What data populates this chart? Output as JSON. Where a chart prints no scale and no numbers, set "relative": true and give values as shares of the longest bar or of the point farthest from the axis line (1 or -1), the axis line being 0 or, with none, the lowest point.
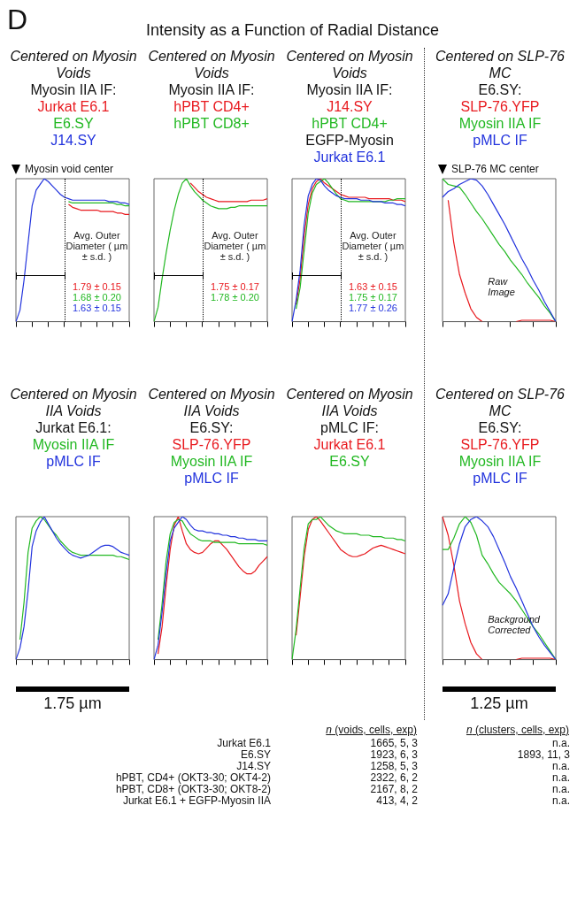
{
  "chart_data": [
    {
      "type": "other",
      "title": "Intensity as a Function of Radial Distance",
      "annotations": [
        "D"
      ]
    },
    {
      "type": "line",
      "relative": true,
      "title": "Centered on Myosin Voids",
      "subtitle": "Myosin IIA IF:",
      "categories": [
        null,
        null,
        null,
        null,
        null,
        null,
        null,
        null,
        null,
        null,
        null,
        null,
        null,
        null,
        null,
        null,
        null,
        null,
        null,
        null,
        null,
        null,
        null,
        null,
        null,
        null,
        null,
        null,
        null
      ],
      "series": [
        {
          "name": "Jurkat E6.1",
          "color": "#e8191e",
          "values": [
            null,
            null,
            null,
            null,
            null,
            null,
            null,
            null,
            null,
            null,
            null,
            null,
            null,
            0.82,
            0.8,
            0.79,
            0.78,
            0.78,
            0.78,
            0.78,
            0.78,
            0.77,
            0.77,
            0.77,
            0.77,
            0.76,
            0.76,
            0.75,
            0.75
          ]
        },
        {
          "name": "E6.SY",
          "color": "#22b822",
          "values": [
            null,
            null,
            null,
            null,
            null,
            null,
            null,
            null,
            null,
            null,
            null,
            null,
            null,
            0.84,
            0.83,
            0.83,
            0.83,
            0.83,
            0.83,
            0.83,
            0.83,
            0.83,
            0.83,
            0.83,
            0.83,
            0.82,
            0.82,
            0.81,
            0.81
          ]
        },
        {
          "name": "J14.SY",
          "color": "#2233dd",
          "values": [
            0,
            0.08,
            0.29,
            0.55,
            0.81,
            0.92,
            0.96,
            1.0,
            0.98,
            0.95,
            0.92,
            0.89,
            0.87,
            0.86,
            0.85,
            0.85,
            0.85,
            0.85,
            0.85,
            0.85,
            0.85,
            0.85,
            0.85,
            0.84,
            0.84,
            0.84,
            0.83,
            0.83,
            0.82
          ]
        }
      ],
      "annotations": [
        {
          "text": "Myosin void center"
        },
        "Avg. Outer Diameter ( µm ± s.d. )",
        "1.79 ± 0.15",
        "1.68 ± 0.20",
        "1.63 ± 0.15"
      ]
    },
    {
      "type": "line",
      "relative": true,
      "title": "Centered on Myosin Voids",
      "subtitle": "Myosin IIA IF:",
      "categories": [
        null,
        null,
        null,
        null,
        null,
        null,
        null,
        null,
        null,
        null,
        null,
        null,
        null,
        null,
        null,
        null,
        null,
        null,
        null,
        null,
        null,
        null,
        null,
        null,
        null,
        null,
        null,
        null,
        null
      ],
      "series": [
        {
          "name": "hPBT CD4+",
          "color": "#e8191e",
          "values": [
            null,
            null,
            null,
            null,
            null,
            null,
            null,
            null,
            null,
            0.97,
            0.94,
            0.91,
            0.89,
            0.87,
            0.86,
            0.85,
            0.84,
            0.84,
            0.84,
            0.84,
            0.84,
            0.84,
            0.84,
            0.84,
            0.85,
            0.85,
            0.85,
            0.85,
            0.86
          ]
        },
        {
          "name": "hPBT CD8+",
          "color": "#22b822",
          "values": [
            0,
            0.1,
            0.3,
            0.48,
            0.64,
            0.78,
            0.89,
            0.97,
            1.0,
            0.95,
            0.91,
            0.88,
            0.85,
            0.83,
            0.81,
            0.8,
            0.79,
            0.79,
            0.79,
            0.8,
            0.8,
            0.81,
            0.81,
            0.81,
            0.81,
            0.81,
            0.81,
            0.81,
            0.81
          ]
        }
      ],
      "annotations": [
        "Avg. Outer Diameter ( µm ± s.d. )",
        "1.75 ± 0.17",
        "1.78 ± 0.20"
      ]
    },
    {
      "type": "line",
      "relative": true,
      "title": "Centered on Myosin Voids",
      "subtitle": "Myosin IIA IF:",
      "legend_title": "EGFP-Myosin",
      "categories": [
        null,
        null,
        null,
        null,
        null,
        null,
        null,
        null,
        null,
        null,
        null,
        null,
        null,
        null,
        null,
        null,
        null,
        null,
        null,
        null,
        null,
        null,
        null,
        null,
        null,
        null,
        null,
        null,
        null
      ],
      "series": [
        {
          "name": "J14.SY",
          "color": "#e8191e",
          "values": [
            null,
            0.12,
            0.3,
            0.6,
            0.82,
            0.93,
            0.98,
            1.0,
            0.97,
            0.95,
            0.93,
            0.91,
            0.89,
            0.88,
            0.87,
            0.87,
            0.87,
            0.87,
            0.87,
            0.86,
            0.86,
            0.86,
            0.86,
            0.86,
            0.86,
            0.85,
            0.85,
            0.85,
            0.84
          ]
        },
        {
          "name": "hPBT CD4+",
          "color": "#22b822",
          "values": [
            null,
            0.09,
            0.24,
            0.5,
            0.76,
            0.9,
            0.96,
            0.98,
            1.0,
            0.97,
            0.93,
            0.89,
            0.86,
            0.85,
            0.84,
            0.84,
            0.84,
            0.84,
            0.84,
            0.84,
            0.84,
            0.84,
            0.84,
            0.84,
            0.85,
            0.85,
            0.86,
            0.86,
            0.86
          ]
        },
        {
          "name": "Jurkat E6.1",
          "color": "#2233dd",
          "values": [
            0,
            0.15,
            0.36,
            0.68,
            0.88,
            0.96,
            1.0,
            0.99,
            0.95,
            0.92,
            0.9,
            0.88,
            0.87,
            0.86,
            0.86,
            0.86,
            0.86,
            0.85,
            0.85,
            0.85,
            0.84,
            0.84,
            0.84,
            0.83,
            0.83,
            0.83,
            0.82,
            0.82,
            0.81
          ]
        }
      ],
      "annotations": [
        "Avg. Outer Diameter ( µm ± s.d. )",
        "1.63 ± 0.15",
        "1.75 ± 0.17",
        "1.77 ± 0.26"
      ]
    },
    {
      "type": "line",
      "relative": true,
      "title": "Centered on SLP-76 MC",
      "subtitle": "E6.SY:",
      "categories": [
        null,
        null,
        null,
        null,
        null,
        null,
        null,
        null,
        null,
        null,
        null,
        null,
        null,
        null,
        null,
        null,
        null,
        null,
        null,
        null,
        null
      ],
      "series": [
        {
          "name": "SLP-76.YFP",
          "color": "#e8191e",
          "values": [
            null,
            0.85,
            0.55,
            0.33,
            0.2,
            0.09,
            0.03,
            0,
            null,
            null,
            null,
            null,
            null,
            0,
            0.01,
            0.01,
            0.01,
            0.01,
            0.01,
            0.01,
            0
          ]
        },
        {
          "name": "Myosin IIA IF",
          "color": "#22b822",
          "values": [
            1,
            0.96,
            0.95,
            0.94,
            0.89,
            0.83,
            0.77,
            0.72,
            0.66,
            0.6,
            0.54,
            0.49,
            0.43,
            0.38,
            0.33,
            0.27,
            0.22,
            0.17,
            0.11,
            0.06,
            0
          ]
        },
        {
          "name": "pMLC IF",
          "color": "#2233dd",
          "values": [
            0.87,
            0.91,
            0.93,
            0.96,
            0.98,
            1.0,
            0.99,
            0.95,
            0.89,
            0.82,
            0.75,
            0.68,
            0.6,
            0.52,
            0.44,
            0.37,
            0.29,
            0.22,
            0.14,
            0.07,
            0
          ]
        }
      ],
      "annotations": [
        {
          "text": "SLP-76 MC center"
        },
        "Raw Image"
      ]
    },
    {
      "type": "line",
      "relative": true,
      "title": "Centered on Myosin IIA Voids",
      "subtitle": "Jurkat E6.1:",
      "xlabel": "1.75 µm",
      "categories": [
        null,
        null,
        null,
        null,
        null,
        null,
        null,
        null,
        null,
        null,
        null,
        null,
        null,
        null,
        null,
        null,
        null,
        null,
        null,
        null,
        null,
        null,
        null,
        null,
        null,
        null,
        null,
        null,
        null
      ],
      "series": [
        {
          "name": "Myosin IIA IF",
          "color": "#22b822",
          "values": [
            null,
            0.14,
            0.4,
            0.75,
            0.92,
            0.97,
            1.0,
            0.98,
            0.94,
            0.9,
            0.87,
            0.83,
            0.8,
            0.77,
            0.75,
            0.74,
            0.73,
            0.73,
            0.73,
            0.73,
            0.73,
            0.73,
            0.73,
            0.73,
            0.73,
            0.72,
            0.72,
            0.71,
            0.7
          ]
        },
        {
          "name": "pMLC IF",
          "color": "#2233dd",
          "values": [
            0,
            0.08,
            0.23,
            0.48,
            0.79,
            0.9,
            0.96,
            1.0,
            0.95,
            0.9,
            0.85,
            0.81,
            0.78,
            0.75,
            0.73,
            0.72,
            0.71,
            0.72,
            0.73,
            0.75,
            0.77,
            0.79,
            0.8,
            0.8,
            0.79,
            0.77,
            0.75,
            0.74,
            0.73
          ]
        }
      ]
    },
    {
      "type": "line",
      "relative": true,
      "title": "Centered on Myosin IIA Voids",
      "subtitle": "E6.SY:",
      "categories": [
        null,
        null,
        null,
        null,
        null,
        null,
        null,
        null,
        null,
        null,
        null,
        null,
        null,
        null,
        null,
        null,
        null,
        null,
        null,
        null,
        null,
        null,
        null,
        null,
        null,
        null,
        null,
        null,
        null
      ],
      "series": [
        {
          "name": "SLP-76.YFP",
          "color": "#e8191e",
          "values": [
            null,
            0.04,
            0.23,
            0.52,
            0.77,
            0.94,
            1.0,
            0.9,
            0.81,
            0.77,
            0.75,
            0.74,
            0.75,
            0.78,
            0.81,
            0.83,
            0.83,
            0.8,
            0.77,
            0.73,
            0.69,
            0.65,
            0.62,
            0.6,
            0.6,
            0.62,
            0.66,
            0.69,
            0.72
          ]
        },
        {
          "name": "Myosin IIA IF",
          "color": "#22b822",
          "values": [
            null,
            0.14,
            0.39,
            0.69,
            0.88,
            0.96,
            0.98,
            0.97,
            0.92,
            0.88,
            0.86,
            0.84,
            0.83,
            0.83,
            0.83,
            0.82,
            0.82,
            0.82,
            0.82,
            0.82,
            0.82,
            0.81,
            0.81,
            0.81,
            0.81,
            0.81,
            0.81,
            0.81,
            0.8
          ]
        },
        {
          "name": "pMLC IF",
          "color": "#2233dd",
          "values": [
            0,
            0.1,
            0.33,
            0.6,
            0.83,
            0.92,
            0.96,
            1.0,
            0.98,
            0.94,
            0.91,
            0.9,
            0.9,
            0.89,
            0.89,
            0.88,
            0.88,
            0.87,
            0.87,
            0.86,
            0.86,
            0.85,
            0.85,
            0.84,
            0.84,
            0.84,
            0.83,
            0.83,
            0.83
          ]
        }
      ]
    },
    {
      "type": "line",
      "relative": true,
      "title": "Centered on Myosin IIA Voids",
      "subtitle": "pMLC IF:",
      "categories": [
        null,
        null,
        null,
        null,
        null,
        null,
        null,
        null,
        null,
        null,
        null,
        null,
        null,
        null,
        null,
        null,
        null,
        null,
        null,
        null,
        null,
        null,
        null,
        null,
        null,
        null,
        null,
        null,
        null
      ],
      "series": [
        {
          "name": "Jurkat E6.1",
          "color": "#e8191e",
          "values": [
            null,
            0.17,
            0.44,
            0.72,
            0.91,
            0.98,
            1.0,
            0.97,
            0.93,
            0.89,
            0.85,
            0.81,
            0.77,
            0.75,
            0.73,
            0.72,
            0.72,
            0.73,
            0.74,
            0.76,
            0.78,
            0.79,
            0.8,
            0.79,
            0.78,
            0.77,
            0.76,
            0.75,
            0.74
          ]
        },
        {
          "name": "E6.SY",
          "color": "#22b822",
          "values": [
            0,
            0.21,
            0.5,
            0.78,
            0.95,
            0.98,
            0.98,
            1.0,
            0.97,
            0.94,
            0.92,
            0.9,
            0.89,
            0.88,
            0.88,
            0.88,
            0.88,
            0.87,
            0.87,
            0.87,
            0.86,
            0.86,
            0.86,
            0.85,
            0.85,
            0.85,
            0.84,
            0.84,
            0.83
          ]
        }
      ]
    },
    {
      "type": "line",
      "relative": true,
      "title": "Centered on SLP-76 MC",
      "subtitle": "E6.SY:",
      "xlabel": "1.25 µm",
      "categories": [
        null,
        null,
        null,
        null,
        null,
        null,
        null,
        null,
        null,
        null,
        null,
        null,
        null,
        null,
        null,
        null,
        null,
        null,
        null,
        null,
        null
      ],
      "series": [
        {
          "name": "SLP-76.YFP",
          "color": "#e8191e",
          "values": [
            1,
            0.87,
            0.66,
            0.41,
            0.25,
            0.12,
            0.04,
            0,
            null,
            null,
            null,
            null,
            null,
            0,
            0.01,
            0.01,
            0.01,
            0.01,
            0.01,
            0.01,
            0
          ]
        },
        {
          "name": "Myosin IIA IF",
          "color": "#22b822",
          "values": [
            0.77,
            0.77,
            0.85,
            0.95,
            1.0,
            0.96,
            0.87,
            0.73,
            0.67,
            0.6,
            0.54,
            0.5,
            0.46,
            0.41,
            0.35,
            0.29,
            0.23,
            0.18,
            0.12,
            0.06,
            0
          ]
        },
        {
          "name": "pMLC IF",
          "color": "#2233dd",
          "values": [
            0.38,
            0.46,
            0.64,
            0.81,
            0.93,
            0.98,
            1.0,
            0.97,
            0.93,
            0.86,
            0.77,
            0.68,
            0.58,
            0.5,
            0.41,
            0.32,
            0.23,
            0.16,
            0.1,
            0.05,
            0
          ]
        }
      ],
      "annotations": [
        "Background Corrected"
      ]
    },
    {
      "type": "other",
      "annotations": [
        "n (voids, cells, exp)",
        "n (clusters, cells, exp)",
        "Jurkat E6.1",
        "1665, 5, 3",
        "n.a.",
        "E6.SY",
        "1923, 6, 3",
        "1893, 11, 3",
        "J14.SY",
        "1258, 5, 3",
        "n.a.",
        "hPBT, CD4+ (OKT3-30; OKT4-2)",
        "2322, 6, 2",
        "n.a.",
        "hPBT, CD8+ (OKT3-30; OKT8-2)",
        "2167, 8, 2",
        "n.a.",
        "Jurkat E6.1 + EGFP-Myosin IIA",
        "413, 4, 2",
        "n.a."
      ]
    }
  ]
}
